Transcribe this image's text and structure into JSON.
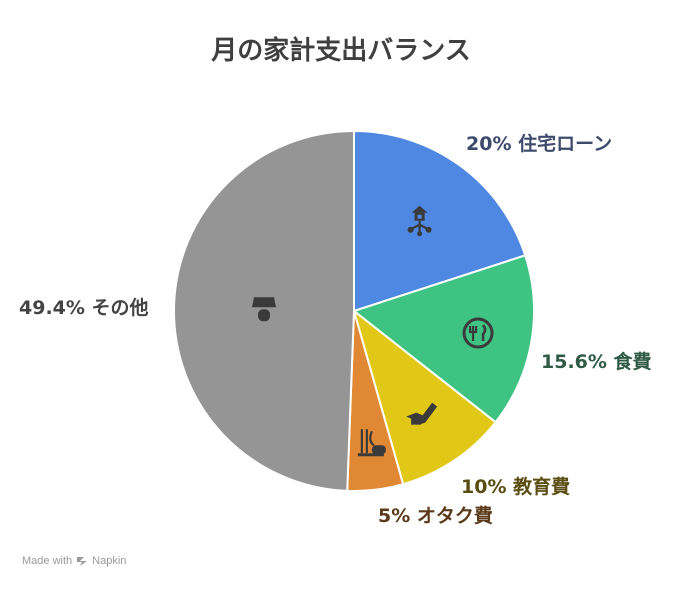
{
  "title": "月の家計支出バランス",
  "footer": {
    "made_with": "Made with",
    "brand": "Napkin"
  },
  "chart_data": {
    "type": "pie",
    "title": "月の家計支出バランス",
    "slices": [
      {
        "label": "住宅ローン",
        "percent_label": "20%",
        "value": 20,
        "color": "#4f88e3",
        "icon": "house-icon",
        "label_color": "#3e4a6b"
      },
      {
        "label": "食費",
        "percent_label": "15.6%",
        "value": 15.6,
        "color": "#3fc383",
        "icon": "fork-knife-icon",
        "label_color": "#2f5a45"
      },
      {
        "label": "教育費",
        "percent_label": "10%",
        "value": 10,
        "color": "#e1c816",
        "icon": "graduation-pen-icon",
        "label_color": "#5a4d12"
      },
      {
        "label": "オタク費",
        "percent_label": "5%",
        "value": 5,
        "color": "#e08834",
        "icon": "game-controller-icon",
        "label_color": "#5a3a18"
      },
      {
        "label": "その他",
        "percent_label": "49.4%",
        "value": 49.4,
        "color": "#959595",
        "icon": "lamp-icon",
        "label_color": "#444444"
      }
    ]
  }
}
